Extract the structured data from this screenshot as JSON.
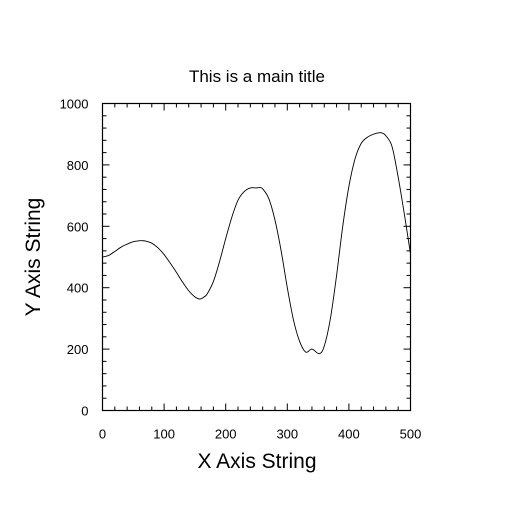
{
  "chart_data": {
    "type": "line",
    "title": "This is a main title",
    "xlabel": "X Axis String",
    "ylabel": "Y Axis String",
    "xlim": [
      0,
      500
    ],
    "ylim": [
      0,
      1000
    ],
    "x_ticks": [
      0,
      100,
      200,
      300,
      400,
      500
    ],
    "x_tick_labels": [
      "0",
      "100",
      "200",
      "300",
      "400",
      "500"
    ],
    "y_ticks": [
      0,
      200,
      400,
      600,
      800,
      1000
    ],
    "y_tick_labels": [
      "0",
      "200",
      "400",
      "600",
      "800",
      "1000"
    ],
    "x_minor_step": 20,
    "y_minor_step": 40,
    "grid": false,
    "legend": "none",
    "line_color": "#000000",
    "series": [
      {
        "x": [
          0,
          10,
          20,
          30,
          40,
          50,
          60,
          65,
          70,
          80,
          90,
          100,
          110,
          120,
          130,
          140,
          150,
          158,
          165,
          170,
          180,
          190,
          200,
          210,
          220,
          230,
          240,
          250,
          255,
          260,
          270,
          280,
          290,
          300,
          310,
          320,
          330,
          340,
          352,
          360,
          370,
          380,
          390,
          400,
          410,
          420,
          430,
          440,
          450,
          455,
          460,
          470,
          480,
          490,
          500
        ],
        "y": [
          500,
          505,
          518,
          532,
          542,
          550,
          553,
          553,
          552,
          545,
          530,
          508,
          480,
          450,
          418,
          390,
          370,
          363,
          370,
          380,
          420,
          485,
          560,
          630,
          685,
          713,
          725,
          725,
          726,
          722,
          690,
          620,
          520,
          400,
          295,
          225,
          190,
          200,
          185,
          210,
          300,
          440,
          600,
          730,
          820,
          870,
          890,
          900,
          905,
          903,
          895,
          860,
          760,
          640,
          510
        ]
      }
    ]
  }
}
